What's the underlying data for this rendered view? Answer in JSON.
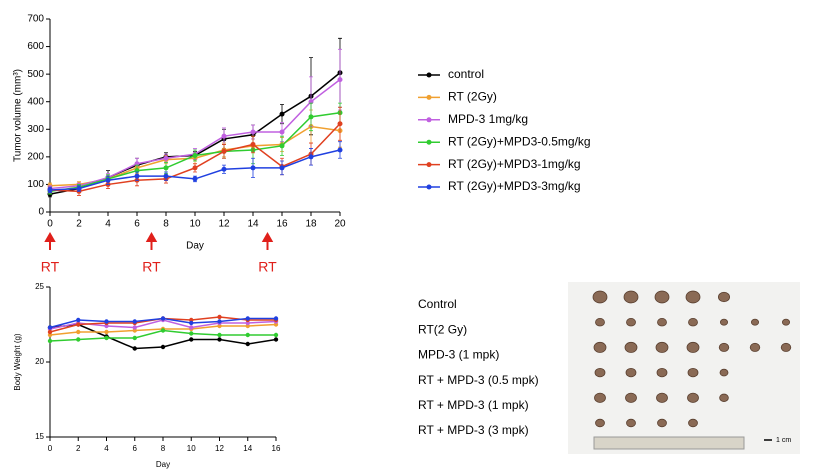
{
  "chart_data": [
    {
      "type": "line",
      "x_label": "Day",
      "y_label": "Tumor volume (mm³)",
      "x": [
        0,
        2,
        4,
        6,
        8,
        10,
        12,
        14,
        16,
        18,
        20
      ],
      "xlim": [
        0,
        20
      ],
      "xticks": [
        0,
        2,
        4,
        6,
        8,
        10,
        12,
        14,
        16,
        18,
        20
      ],
      "ylim": [
        0,
        700
      ],
      "yticks": [
        0,
        100,
        200,
        300,
        400,
        500,
        600,
        700
      ],
      "legend": "outside-right",
      "series": [
        {
          "name": "control",
          "color": "#000000",
          "values": [
            65,
            85,
            125,
            170,
            200,
            205,
            265,
            280,
            355,
            420,
            505
          ],
          "errors": [
            10,
            10,
            25,
            25,
            15,
            15,
            35,
            35,
            35,
            140,
            125
          ]
        },
        {
          "name": "RT (2Gy)",
          "color": "#f0a030",
          "values": [
            95,
            100,
            120,
            160,
            190,
            195,
            225,
            240,
            245,
            310,
            295
          ],
          "errors": [
            10,
            10,
            15,
            20,
            15,
            20,
            25,
            25,
            25,
            60,
            60
          ]
        },
        {
          "name": "MPD-3 1mg/kg",
          "color": "#c060e0",
          "values": [
            85,
            95,
            125,
            175,
            195,
            210,
            275,
            290,
            290,
            400,
            480
          ],
          "errors": [
            10,
            10,
            15,
            20,
            15,
            20,
            30,
            25,
            35,
            90,
            110
          ]
        },
        {
          "name": "RT (2Gy)+MPD3-0.5mg/kg",
          "color": "#30cc30",
          "values": [
            75,
            90,
            120,
            150,
            160,
            205,
            220,
            225,
            240,
            345,
            360
          ],
          "errors": [
            10,
            10,
            15,
            20,
            20,
            20,
            25,
            50,
            35,
            50,
            35
          ]
        },
        {
          "name": "RT (2Gy)+MPD3-1mg/kg",
          "color": "#e04020",
          "values": [
            80,
            75,
            100,
            115,
            120,
            160,
            220,
            245,
            165,
            210,
            320
          ],
          "errors": [
            10,
            15,
            15,
            20,
            15,
            15,
            25,
            30,
            30,
            40,
            60
          ]
        },
        {
          "name": "RT (2Gy)+MPD3-3mg/kg",
          "color": "#2040e0",
          "values": [
            80,
            85,
            115,
            130,
            130,
            120,
            155,
            160,
            160,
            200,
            225
          ],
          "errors": [
            10,
            10,
            15,
            15,
            15,
            10,
            15,
            35,
            25,
            30,
            30
          ]
        }
      ],
      "annotations": [
        {
          "x": 0,
          "text": "RT"
        },
        {
          "x": 7,
          "text": "RT"
        },
        {
          "x": 15,
          "text": "RT"
        }
      ]
    },
    {
      "type": "line",
      "x_label": "Day",
      "y_label": "Body Weight (g)",
      "x": [
        0,
        2,
        4,
        6,
        8,
        10,
        12,
        14,
        16
      ],
      "xlim": [
        0,
        16
      ],
      "xticks": [
        0,
        2,
        4,
        6,
        8,
        10,
        12,
        14,
        16
      ],
      "ylim": [
        15,
        25
      ],
      "yticks": [
        15,
        20,
        25
      ],
      "series": [
        {
          "color": "#000000",
          "values": [
            22.3,
            22.5,
            21.7,
            20.9,
            21.0,
            21.5,
            21.5,
            21.2,
            21.5
          ]
        },
        {
          "color": "#f0a030",
          "values": [
            21.8,
            22.0,
            22.0,
            22.1,
            22.2,
            22.2,
            22.4,
            22.4,
            22.5
          ]
        },
        {
          "color": "#c060e0",
          "values": [
            22.2,
            22.6,
            22.4,
            22.3,
            22.8,
            22.3,
            22.6,
            22.6,
            22.7
          ]
        },
        {
          "color": "#30cc30",
          "values": [
            21.4,
            21.5,
            21.6,
            21.6,
            22.1,
            21.9,
            21.8,
            21.8,
            21.8
          ]
        },
        {
          "color": "#e04020",
          "values": [
            22.0,
            22.5,
            22.6,
            22.6,
            22.9,
            22.8,
            23.0,
            22.8,
            22.8
          ]
        },
        {
          "color": "#2040e0",
          "values": [
            22.3,
            22.8,
            22.7,
            22.7,
            22.9,
            22.6,
            22.7,
            22.9,
            22.9
          ]
        }
      ]
    }
  ],
  "photo": {
    "row_labels": [
      "Control",
      "RT(2 Gy)",
      "MPD-3 (1 mpk)",
      "RT + MPD-3 (0.5 mpk)",
      "RT + MPD-3 (1 mpk)",
      "RT + MPD-3 (3 mpk)"
    ],
    "scale_label": "1 cm"
  }
}
